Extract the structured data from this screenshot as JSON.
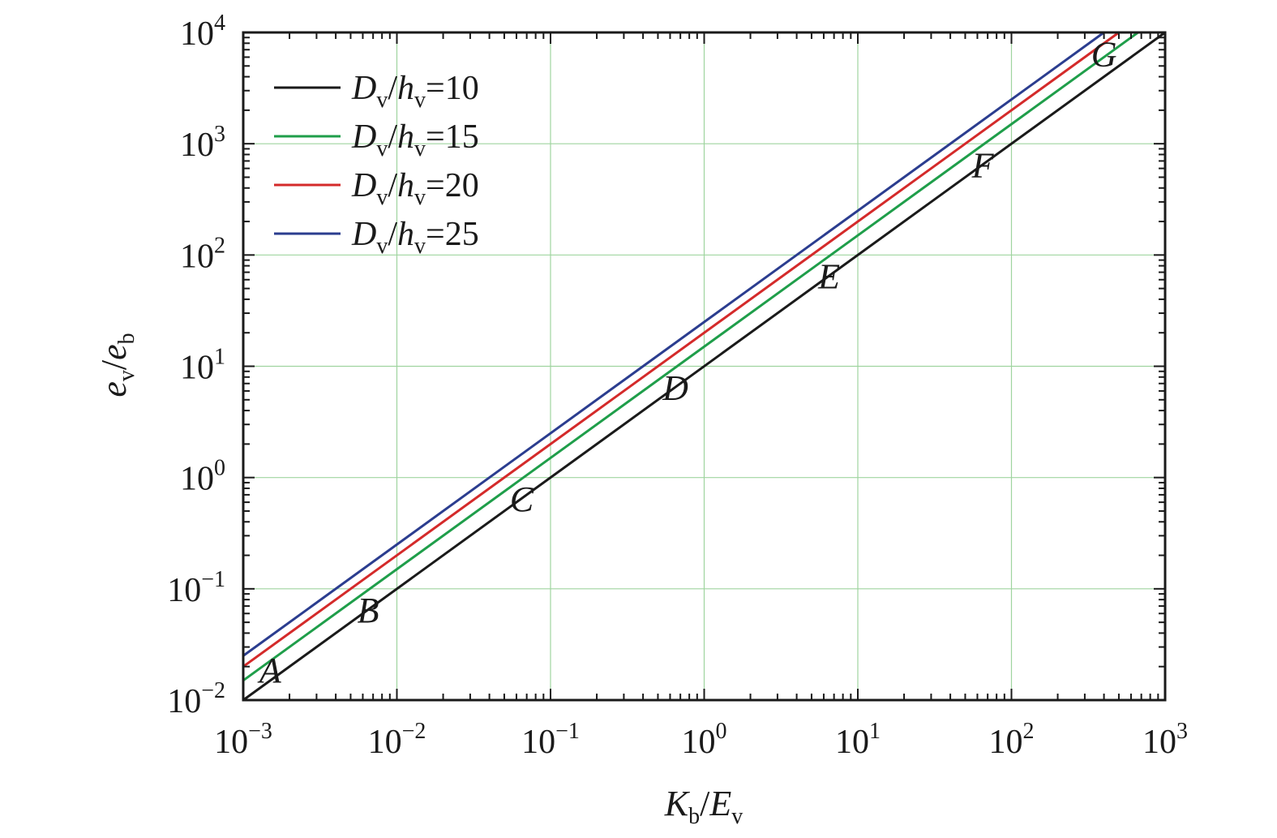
{
  "chart_data": {
    "type": "line",
    "xscale": "log",
    "yscale": "log",
    "xlim": [
      0.001,
      1000
    ],
    "ylim": [
      0.01,
      10000
    ],
    "grid": true,
    "legend": "top-left",
    "x_ticks": [
      0.001,
      0.01,
      0.1,
      1,
      10,
      100,
      1000
    ],
    "y_ticks": [
      0.01,
      0.1,
      1,
      10,
      100,
      1000,
      10000
    ],
    "x_tick_labels": [
      {
        "base": "10",
        "exp": "−3"
      },
      {
        "base": "10",
        "exp": "−2"
      },
      {
        "base": "10",
        "exp": "−1"
      },
      {
        "base": "10",
        "exp": "0"
      },
      {
        "base": "10",
        "exp": "1"
      },
      {
        "base": "10",
        "exp": "2"
      },
      {
        "base": "10",
        "exp": "3"
      }
    ],
    "y_tick_labels": [
      {
        "base": "10",
        "exp": "−2"
      },
      {
        "base": "10",
        "exp": "−1"
      },
      {
        "base": "10",
        "exp": "0"
      },
      {
        "base": "10",
        "exp": "1"
      },
      {
        "base": "10",
        "exp": "2"
      },
      {
        "base": "10",
        "exp": "3"
      },
      {
        "base": "10",
        "exp": "4"
      }
    ],
    "xlabel": {
      "main1": "K",
      "sub1": "b",
      "sep": "/",
      "main2": "E",
      "sub2": "v"
    },
    "ylabel": {
      "main1": "e",
      "sub1": "v",
      "sep": "/",
      "main2": "e",
      "sub2": "b"
    },
    "series": [
      {
        "legend": {
          "main1": "D",
          "sub1": "v",
          "sep": "/",
          "main2": "h",
          "sub2": "v",
          "eq": "=10"
        },
        "color": "#1a1a1a",
        "x": [
          0.001,
          1000
        ],
        "y": [
          0.01,
          10000
        ]
      },
      {
        "legend": {
          "main1": "D",
          "sub1": "v",
          "sep": "/",
          "main2": "h",
          "sub2": "v",
          "eq": "=15"
        },
        "color": "#1f9e4a",
        "x": [
          0.001,
          666.7
        ],
        "y": [
          0.015,
          10000
        ]
      },
      {
        "legend": {
          "main1": "D",
          "sub1": "v",
          "sep": "/",
          "main2": "h",
          "sub2": "v",
          "eq": "=20"
        },
        "color": "#d42a2a",
        "x": [
          0.001,
          500
        ],
        "y": [
          0.02,
          10000
        ]
      },
      {
        "legend": {
          "main1": "D",
          "sub1": "v",
          "sep": "/",
          "main2": "h",
          "sub2": "v",
          "eq": "=25"
        },
        "color": "#2b3d8f",
        "x": [
          0.001,
          400
        ],
        "y": [
          0.025,
          10000
        ]
      }
    ],
    "annotations": [
      {
        "text": "A",
        "x": 0.0015,
        "y": 0.0145
      },
      {
        "text": "B",
        "x": 0.0065,
        "y": 0.05
      },
      {
        "text": "C",
        "x": 0.065,
        "y": 0.5
      },
      {
        "text": "D",
        "x": 0.65,
        "y": 5
      },
      {
        "text": "E",
        "x": 6.5,
        "y": 50
      },
      {
        "text": "F",
        "x": 65,
        "y": 500
      },
      {
        "text": "G",
        "x": 400,
        "y": 5000
      }
    ]
  }
}
